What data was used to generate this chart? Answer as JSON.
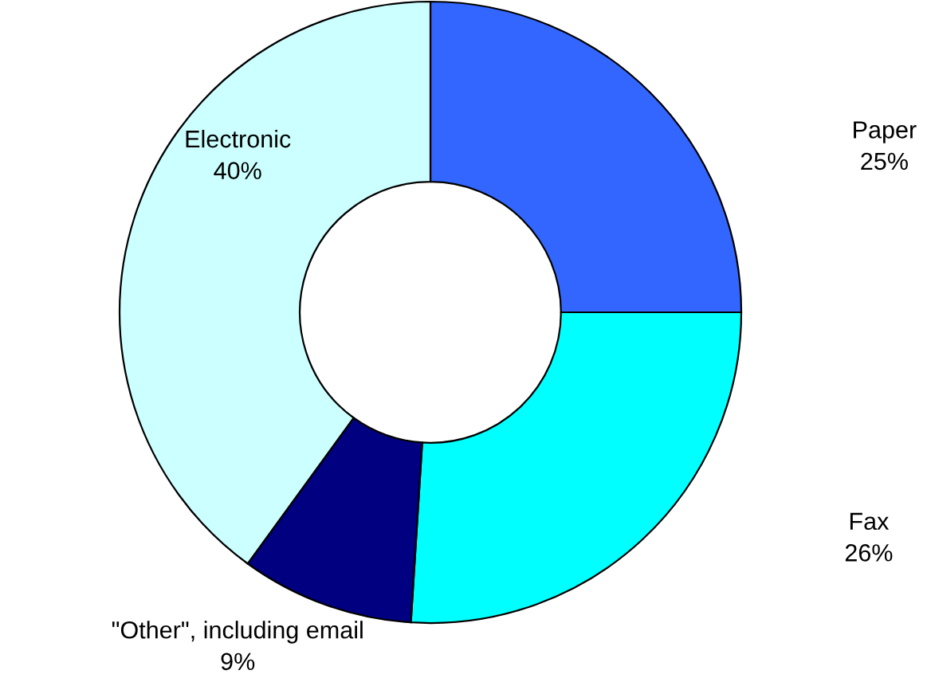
{
  "chart_data": {
    "type": "donut",
    "categories": [
      "Paper",
      "Fax",
      "\"Other\", including email",
      "Electronic"
    ],
    "values": [
      25,
      26,
      9,
      40
    ],
    "colors": [
      "#3366ff",
      "#00ffff",
      "#000080",
      "#ccffff"
    ],
    "value_labels": [
      "25%",
      "26%",
      "9%",
      "40%"
    ]
  }
}
